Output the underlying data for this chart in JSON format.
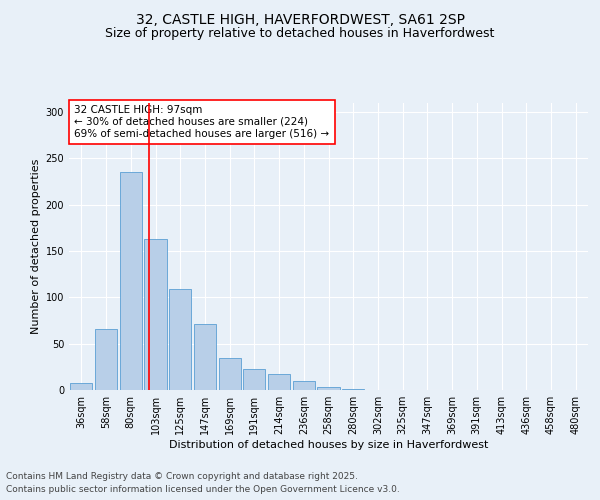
{
  "title1": "32, CASTLE HIGH, HAVERFORDWEST, SA61 2SP",
  "title2": "Size of property relative to detached houses in Haverfordwest",
  "xlabel": "Distribution of detached houses by size in Haverfordwest",
  "ylabel": "Number of detached properties",
  "categories": [
    "36sqm",
    "58sqm",
    "80sqm",
    "103sqm",
    "125sqm",
    "147sqm",
    "169sqm",
    "191sqm",
    "214sqm",
    "236sqm",
    "258sqm",
    "280sqm",
    "302sqm",
    "325sqm",
    "347sqm",
    "369sqm",
    "391sqm",
    "413sqm",
    "436sqm",
    "458sqm",
    "480sqm"
  ],
  "values": [
    8,
    66,
    235,
    163,
    109,
    71,
    35,
    23,
    17,
    10,
    3,
    1,
    0,
    0,
    0,
    0,
    0,
    0,
    0,
    0,
    0
  ],
  "bar_color": "#b8cfe8",
  "bar_edge_color": "#5a9fd4",
  "vline_color": "red",
  "annotation_text": "32 CASTLE HIGH: 97sqm\n← 30% of detached houses are smaller (224)\n69% of semi-detached houses are larger (516) →",
  "annotation_box_color": "white",
  "annotation_box_edge": "red",
  "bg_color": "#e8f0f8",
  "plot_bg_color": "#e8f0f8",
  "ylim": [
    0,
    310
  ],
  "yticks": [
    0,
    50,
    100,
    150,
    200,
    250,
    300
  ],
  "footer1": "Contains HM Land Registry data © Crown copyright and database right 2025.",
  "footer2": "Contains public sector information licensed under the Open Government Licence v3.0.",
  "title_fontsize": 10,
  "subtitle_fontsize": 9,
  "axis_label_fontsize": 8,
  "tick_fontsize": 7,
  "annotation_fontsize": 7.5,
  "footer_fontsize": 6.5
}
